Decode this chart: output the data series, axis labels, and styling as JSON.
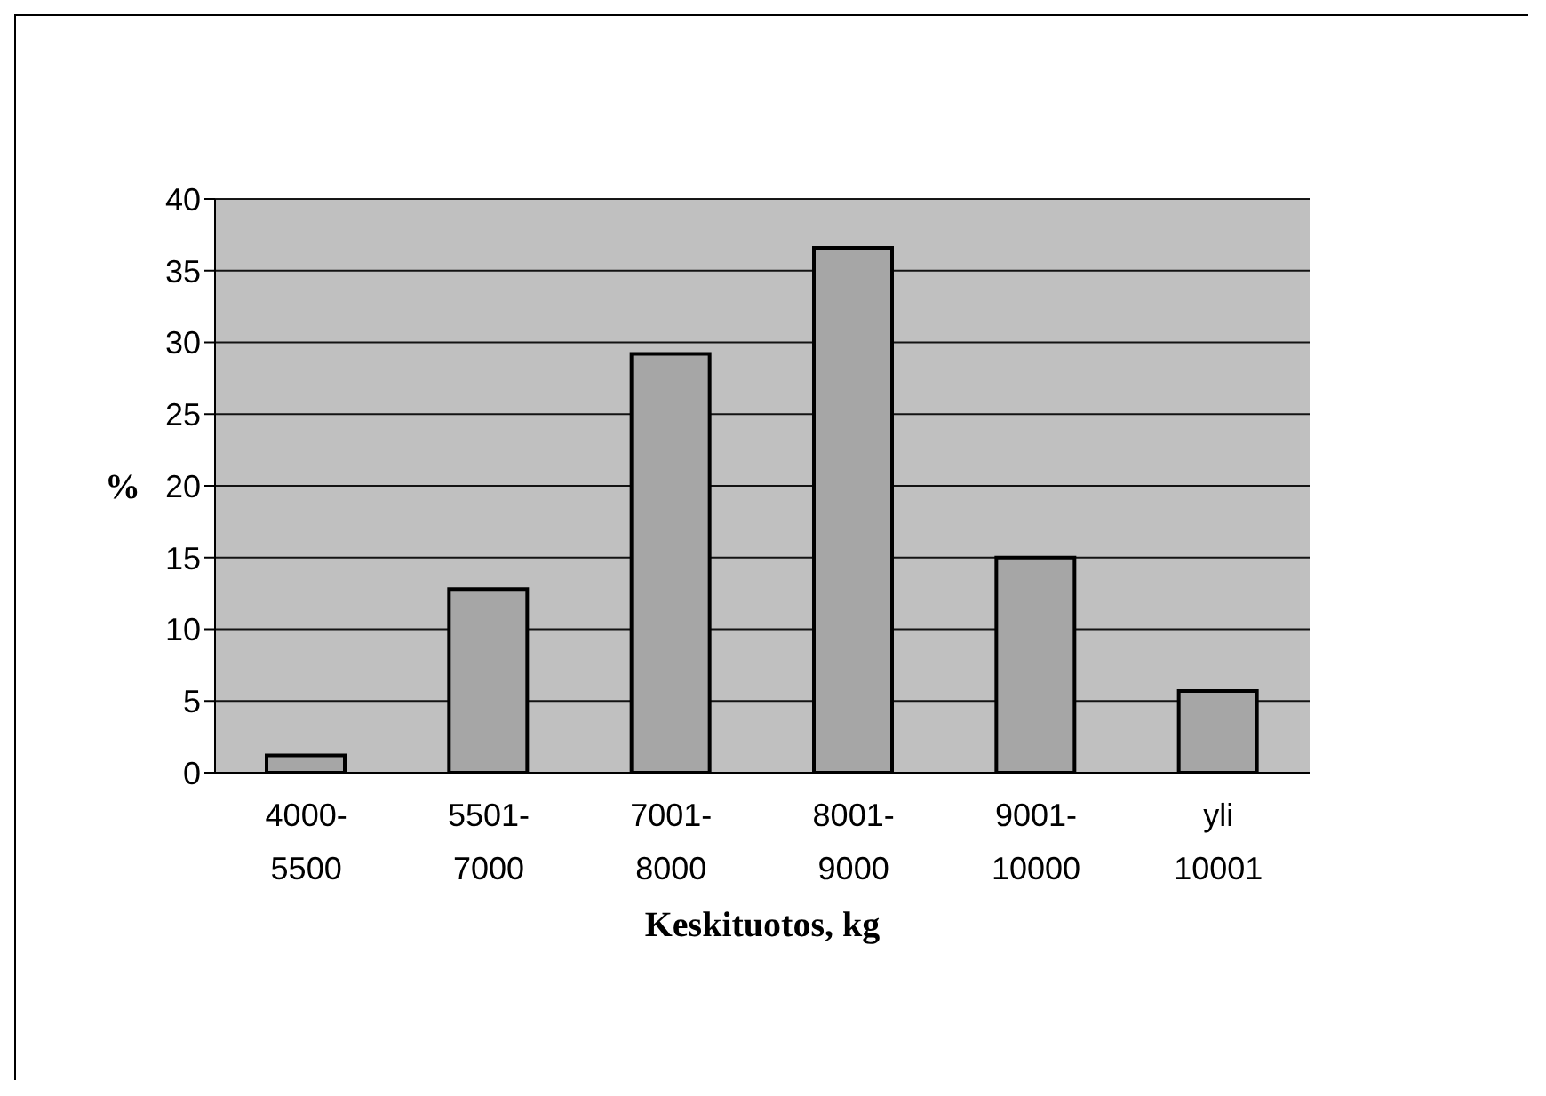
{
  "chart_data": {
    "type": "bar",
    "xlabel": "Keskituotos, kg",
    "ylabel": "%",
    "categories": [
      "4000-\n5500",
      "5501-\n7000",
      "7001-\n8000",
      "8001-\n9000",
      "9001-\n10000",
      "yli\n10001"
    ],
    "values": [
      1.2,
      12.8,
      29.2,
      36.6,
      15.0,
      5.7
    ],
    "color": "#a6a6a6",
    "ylim": [
      0,
      40
    ],
    "yticks": [
      0,
      5,
      10,
      15,
      20,
      25,
      30,
      35,
      40
    ],
    "grid": "y"
  }
}
